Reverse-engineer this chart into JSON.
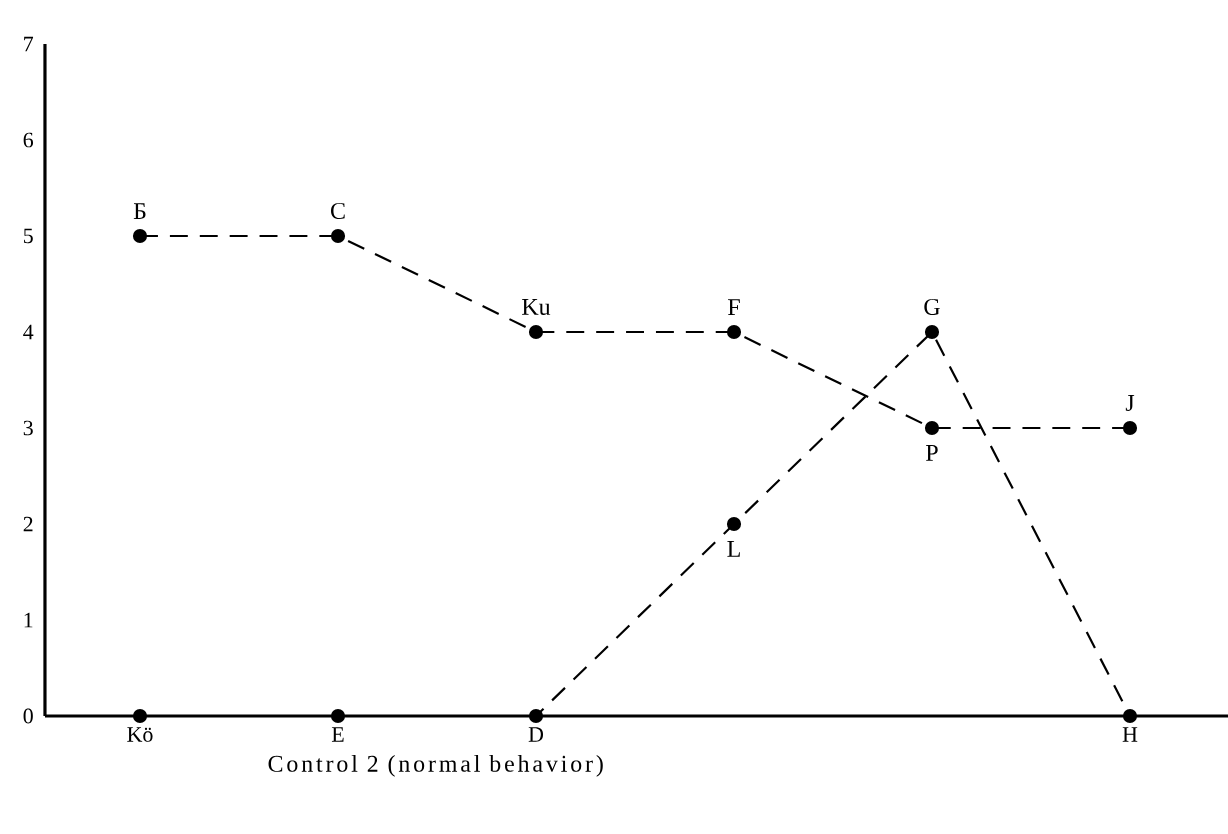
{
  "chart_data": {
    "type": "line",
    "xlabel": "Control 2    (normal behavior)",
    "categories": [
      "Kö",
      "E",
      "D",
      null,
      null,
      "H"
    ],
    "series": [
      {
        "color": "#000000",
        "values": [
          5,
          5,
          4,
          4,
          3,
          3
        ],
        "value_labels": [
          "Б",
          "C",
          "Ku",
          "F",
          "P",
          "J"
        ]
      },
      {
        "color": "#000000",
        "values": [
          0,
          0,
          0,
          2,
          4,
          0
        ],
        "value_labels": [
          null,
          null,
          null,
          "L",
          "G",
          null
        ]
      }
    ],
    "ylim": [
      0,
      7
    ],
    "yticks": [
      0,
      1,
      2,
      3,
      4,
      5,
      6,
      7
    ],
    "grid": false,
    "marker": "circle",
    "line_style": "dashed"
  }
}
